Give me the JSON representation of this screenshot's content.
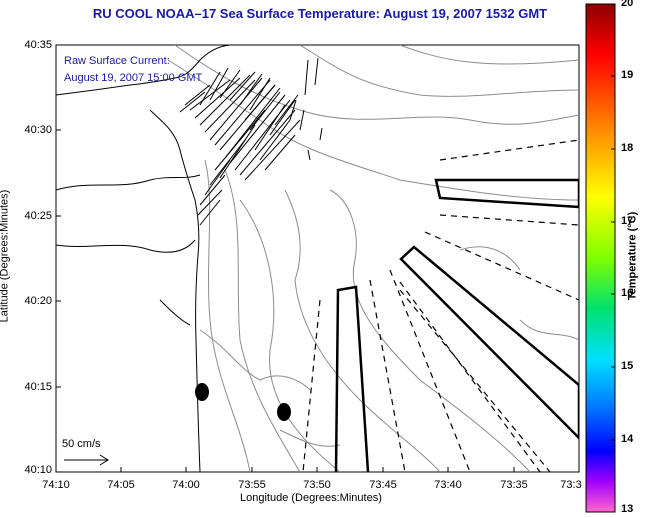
{
  "title": "RU COOL  NOAA–17  Sea Surface Temperature:  August 19, 2007 1532 GMT",
  "legend": {
    "line1": "Raw Surface Current:",
    "line2": "August 19, 2007 15:00 GMT",
    "scale_label": "50 cm/s"
  },
  "axes": {
    "xlabel": "Longitude (Degrees:Minutes)",
    "ylabel": "Latitude (Degrees:Minutes)",
    "x_ticks": [
      "74:10",
      "74:05",
      "74:00",
      "73:55",
      "73:50",
      "73:45",
      "73:40",
      "73:35",
      "73:3"
    ],
    "y_ticks": [
      "40:35",
      "40:30",
      "40:25",
      "40:20",
      "40:15",
      "40:10"
    ]
  },
  "colorbar": {
    "title": "Temperature (°C)",
    "ticks": [
      "20",
      "19",
      "18",
      "17",
      "16",
      "15",
      "14",
      "13"
    ],
    "range": [
      13,
      20
    ]
  },
  "colors": {
    "title": "#1a1aa0",
    "contour": "#8c8c8c",
    "coast": "#000000"
  }
}
